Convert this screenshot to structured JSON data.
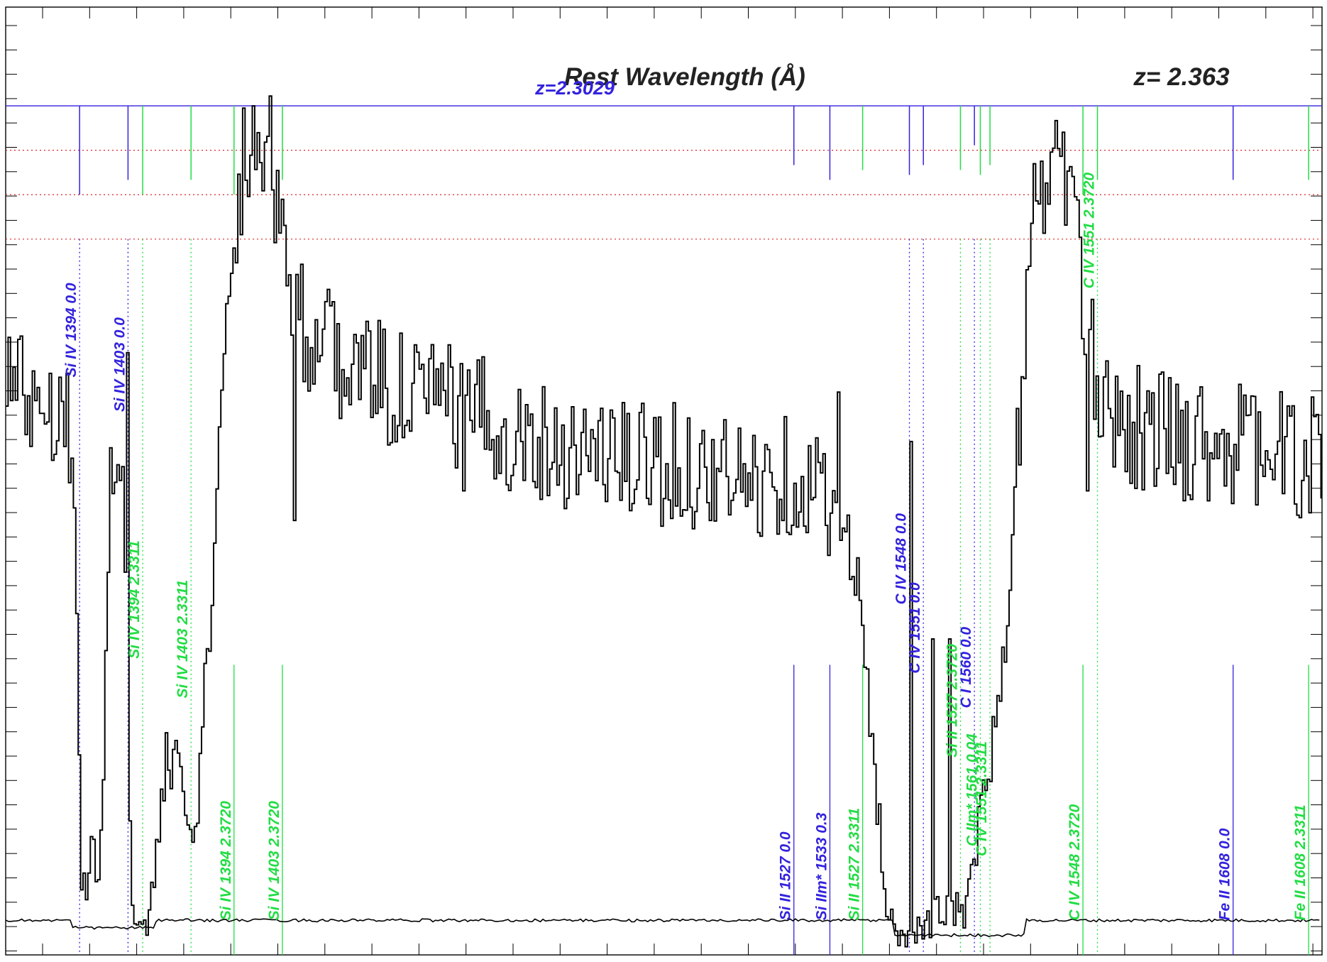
{
  "chart_data": {
    "type": "line",
    "title": "Rest Wavelength (Å)",
    "redshift_label": "z=  2.363",
    "absorber_label": "z=2.3029",
    "xlabel": "",
    "ylabel": "",
    "xlim": [
      1380,
      1625
    ],
    "ylim": [
      -0.02,
      1.9
    ],
    "grid": false,
    "colors": {
      "flux": "#000000",
      "error": "#000000",
      "galactic_lines": "#3322dd",
      "intervening_lines": "#22dd44",
      "guides": "#dd2222"
    },
    "reference_levels": [
      1.7,
      1.61,
      1.52,
      1.43
    ],
    "flux_anchors": [
      [
        1380,
        1.18
      ],
      [
        1382,
        1.13
      ],
      [
        1386,
        1.12
      ],
      [
        1390,
        1.1
      ],
      [
        1392,
        1.05
      ],
      [
        1393,
        0.7
      ],
      [
        1394,
        0.12
      ],
      [
        1395,
        0.1
      ],
      [
        1396,
        0.25
      ],
      [
        1397,
        0.1
      ],
      [
        1398,
        0.3
      ],
      [
        1399,
        0.85
      ],
      [
        1400,
        1.05
      ],
      [
        1401,
        1.05
      ],
      [
        1402,
        0.9
      ],
      [
        1403,
        0.18
      ],
      [
        1404,
        0.02
      ],
      [
        1405,
        0.04
      ],
      [
        1406,
        0.08
      ],
      [
        1407,
        0.1
      ],
      [
        1408,
        0.2
      ],
      [
        1409,
        0.32
      ],
      [
        1411,
        0.36
      ],
      [
        1413,
        0.32
      ],
      [
        1415,
        0.25
      ],
      [
        1416,
        0.35
      ],
      [
        1418,
        0.7
      ],
      [
        1420,
        1.05
      ],
      [
        1422,
        1.4
      ],
      [
        1424,
        1.6
      ],
      [
        1426,
        1.67
      ],
      [
        1428,
        1.65
      ],
      [
        1430,
        1.52
      ],
      [
        1432,
        1.42
      ],
      [
        1434,
        1.3
      ],
      [
        1436,
        1.24
      ],
      [
        1440,
        1.2
      ],
      [
        1450,
        1.14
      ],
      [
        1460,
        1.1
      ],
      [
        1470,
        1.06
      ],
      [
        1480,
        1.02
      ],
      [
        1490,
        1.0
      ],
      [
        1500,
        0.98
      ],
      [
        1510,
        0.96
      ],
      [
        1520,
        0.93
      ],
      [
        1525,
        0.96
      ],
      [
        1529,
        0.93
      ],
      [
        1531,
        0.92
      ],
      [
        1534,
        0.9
      ],
      [
        1536,
        0.82
      ],
      [
        1538,
        0.72
      ],
      [
        1539,
        0.65
      ],
      [
        1540,
        0.55
      ],
      [
        1541,
        0.42
      ],
      [
        1542,
        0.3
      ],
      [
        1543,
        0.16
      ],
      [
        1544,
        0.08
      ],
      [
        1545,
        0.04
      ],
      [
        1546,
        0.01
      ],
      [
        1547,
        0.03
      ],
      [
        1548,
        0.02
      ],
      [
        1549,
        0.04
      ],
      [
        1550,
        0.03
      ],
      [
        1551,
        0.05
      ],
      [
        1552,
        0.03
      ],
      [
        1553,
        0.07
      ],
      [
        1554,
        0.04
      ],
      [
        1555,
        0.08
      ],
      [
        1556,
        0.06
      ],
      [
        1557,
        0.1
      ],
      [
        1558,
        0.06
      ],
      [
        1559,
        0.1
      ],
      [
        1560,
        0.16
      ],
      [
        1561,
        0.24
      ],
      [
        1562,
        0.33
      ],
      [
        1564,
        0.42
      ],
      [
        1566,
        0.6
      ],
      [
        1568,
        0.95
      ],
      [
        1570,
        1.38
      ],
      [
        1572,
        1.52
      ],
      [
        1574,
        1.58
      ],
      [
        1576,
        1.6
      ],
      [
        1578,
        1.55
      ],
      [
        1580,
        1.3
      ],
      [
        1582,
        1.18
      ],
      [
        1585,
        1.1
      ],
      [
        1590,
        1.05
      ],
      [
        1600,
        1.03
      ],
      [
        1610,
        1.01
      ],
      [
        1620,
        0.99
      ],
      [
        1625,
        0.98
      ]
    ],
    "flux_spikes": [
      [
        1402.5,
        1.2
      ],
      [
        1406.3,
        0.02
      ],
      [
        1409.5,
        0.43
      ],
      [
        1425.8,
        1.7
      ],
      [
        1429,
        1.72
      ],
      [
        1433.5,
        0.86
      ],
      [
        1436.5,
        1.21
      ],
      [
        1465,
        0.92
      ],
      [
        1496,
        0.88
      ],
      [
        1521,
        0.96
      ],
      [
        1535,
        1.12
      ],
      [
        1548.4,
        1.02
      ],
      [
        1552.5,
        0.62
      ],
      [
        1555.5,
        0.62
      ],
      [
        1575.5,
        1.67
      ],
      [
        1581,
        0.92
      ],
      [
        1599,
        0.9
      ],
      [
        1613,
        1.08
      ],
      [
        1622,
        0.95
      ]
    ],
    "error_level": 0.05,
    "lines": [
      {
        "label": "Si IV 1394 0.0",
        "x": 1393.76,
        "group": "galactic",
        "style": "dotted",
        "label_y": 1.15,
        "tick_y": 1.52
      },
      {
        "label": "Si IV 1403 0.0",
        "x": 1402.77,
        "group": "galactic",
        "style": "dotted",
        "label_y": 1.08,
        "tick_y": 1.55
      },
      {
        "label": "Si IV 1394 2.3311",
        "x": 1405.5,
        "group": "intervening",
        "style": "dotted",
        "label_y": 0.58,
        "tick_y": 1.52
      },
      {
        "label": "Si IV 1403 2.3311",
        "x": 1414.5,
        "group": "intervening",
        "style": "dotted",
        "label_y": 0.5,
        "tick_y": 1.55
      },
      {
        "label": "Si IV 1394 2.3720",
        "x": 1422.5,
        "group": "intervening",
        "style": "solid",
        "label_y": 0.05,
        "tick_y": 1.52
      },
      {
        "label": "Si IV 1403 2.3720",
        "x": 1431.5,
        "group": "intervening",
        "style": "solid",
        "label_y": 0.05,
        "tick_y": 1.55
      },
      {
        "label": "Si II 1527 0.0",
        "x": 1526.7,
        "group": "galactic",
        "style": "solid",
        "label_y": 0.05,
        "tick_y": 1.58
      },
      {
        "label": "Si IIm* 1533 0.3",
        "x": 1533.4,
        "group": "galactic",
        "style": "solid",
        "label_y": 0.05,
        "tick_y": 1.55
      },
      {
        "label": "Si II 1527 2.3311",
        "x": 1539.5,
        "group": "intervening",
        "style": "solid",
        "label_y": 0.05,
        "tick_y": 1.57
      },
      {
        "label": "C IV 1548 0.0",
        "x": 1548.2,
        "group": "galactic",
        "style": "dotted",
        "label_y": 0.69,
        "tick_y": 1.56
      },
      {
        "label": "C IV 1551 0.0",
        "x": 1550.8,
        "group": "galactic",
        "style": "dotted",
        "label_y": 0.55,
        "tick_y": 1.58
      },
      {
        "label": "Si II 1527 2.3720",
        "x": 1557.7,
        "group": "intervening",
        "style": "dotted",
        "label_y": 0.38,
        "tick_y": 1.57
      },
      {
        "label": "C I 1560 0.0",
        "x": 1560.3,
        "group": "galactic",
        "style": "dotted",
        "label_y": 0.48,
        "tick_y": 1.62
      },
      {
        "label": "C IIm* 1561 0.04",
        "x": 1561.4,
        "group": "intervening",
        "style": "dotted",
        "label_y": 0.2,
        "tick_y": 1.56
      },
      {
        "label": "C IV 1551 2.3311",
        "x": 1563.2,
        "group": "intervening",
        "style": "dotted",
        "label_y": 0.18,
        "tick_y": 1.58
      },
      {
        "label": "C IV 1548 2.3720",
        "x": 1580.5,
        "group": "intervening",
        "style": "solid",
        "label_y": 0.05,
        "tick_y": 1.52
      },
      {
        "label": "C IV 1551 2.3720",
        "x": 1583.2,
        "group": "intervening",
        "style": "dotted",
        "label_y": 1.33,
        "tick_y": 1.55
      },
      {
        "label": "Fe II 1608 0.0",
        "x": 1608.45,
        "group": "galactic",
        "style": "solid",
        "label_y": 0.05,
        "tick_y": 1.55
      },
      {
        "label": "Fe II 1608 2.3311",
        "x": 1622.5,
        "group": "intervening",
        "style": "solid",
        "label_y": 0.05,
        "tick_y": 1.55
      }
    ]
  }
}
